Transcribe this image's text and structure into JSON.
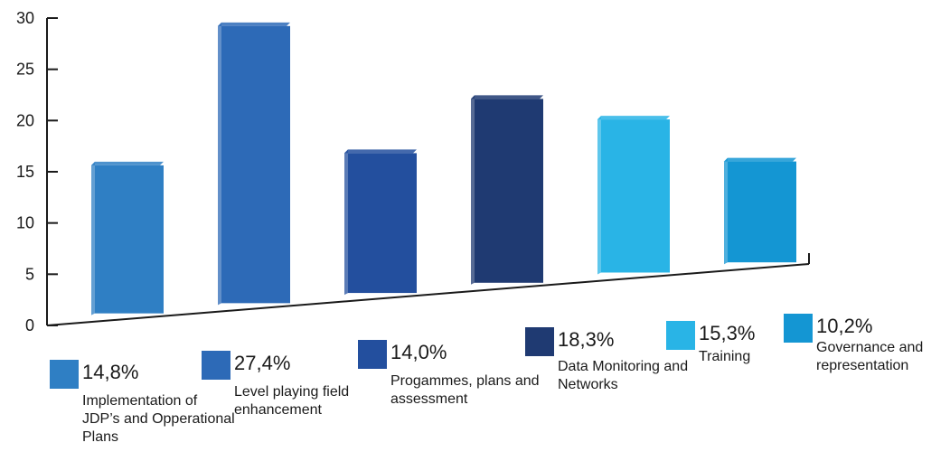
{
  "chart_data": {
    "type": "bar",
    "categories": [
      "Implementation of JDP’s and Opperational Plans",
      "Level playing field enhancement",
      "Progammes, plans and assessment",
      "Data Monitoring and Networks",
      "Training",
      "Governance and representation"
    ],
    "values": [
      14.8,
      27.4,
      14.0,
      18.3,
      15.3,
      10.2
    ],
    "value_labels": [
      "14,8%",
      "27,4%",
      "14,0%",
      "18,3%",
      "15,3%",
      "10,2%"
    ],
    "colors": [
      "#2f7fc4",
      "#2d6ab7",
      "#234f9e",
      "#1f3a72",
      "#29b4e6",
      "#1496d3"
    ],
    "ylim": [
      0,
      30
    ],
    "yticks": [
      "0",
      "5",
      "10",
      "15",
      "20",
      "25",
      "30"
    ],
    "grid": false,
    "legend_position": "bottom",
    "title": "",
    "xlabel": "",
    "ylabel": ""
  }
}
